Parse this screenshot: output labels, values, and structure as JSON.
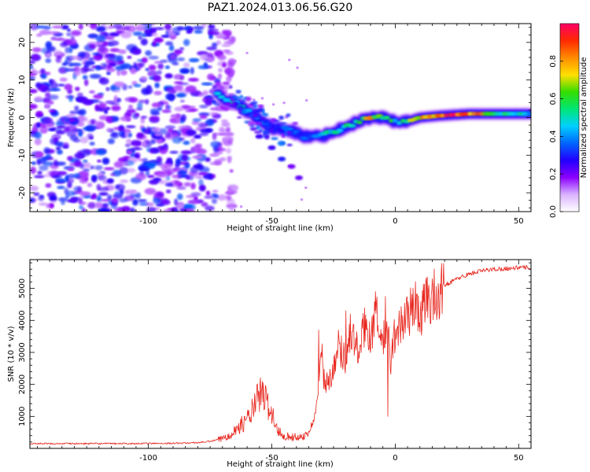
{
  "figure": {
    "title": "PAZ1.2024.013.06.56.G20"
  },
  "chart_data": [
    {
      "type": "heatmap",
      "xlabel": "Height of straight line (km)",
      "ylabel": "Frequency (Hz)",
      "xlim": [
        -148,
        55
      ],
      "ylim": [
        -25,
        25
      ],
      "x_ticks": [
        -100,
        -50,
        0,
        50
      ],
      "y_ticks": [
        -20,
        -10,
        0,
        10,
        20
      ],
      "grid": false,
      "colorbar": {
        "label": "Normalized spectral amplitude",
        "ticks": [
          0.0,
          0.2,
          0.4,
          0.6,
          0.8
        ],
        "range": [
          0,
          1
        ],
        "colormap": [
          "#ffffff",
          "#d9b3ff",
          "#8b00ff",
          "#2200ff",
          "#0066ff",
          "#00d0ff",
          "#00e676",
          "#33dd00",
          "#ffe000",
          "#ff8c00",
          "#ff2a00",
          "#ff0066"
        ]
      },
      "ridge": {
        "x": [
          -72,
          -65,
          -58,
          -50,
          -44,
          -37,
          -30,
          -22,
          -15,
          -10,
          -5,
          0,
          5,
          10,
          18,
          30,
          40,
          55
        ],
        "frequency": [
          6,
          4,
          1,
          -3,
          -3,
          -5,
          -5,
          -3,
          -1,
          0,
          0,
          -1,
          -1,
          0,
          0.5,
          1,
          1,
          1
        ],
        "amplitude": [
          0.45,
          0.55,
          0.45,
          0.3,
          0.4,
          0.35,
          0.5,
          0.55,
          0.65,
          0.8,
          0.6,
          0.55,
          0.6,
          0.8,
          0.9,
          0.95,
          0.6,
          0.45
        ]
      },
      "side_branch": {
        "x": [
          -55,
          -50,
          -46,
          -42,
          -39
        ],
        "frequency": [
          -5,
          -8,
          -11,
          -13,
          -16
        ]
      },
      "noise_region": {
        "x_range": [
          -148,
          -72
        ],
        "frequency_range": [
          -25,
          25
        ],
        "amplitude_range": [
          0.1,
          0.35
        ]
      }
    },
    {
      "type": "line",
      "xlabel": "Height of straight line (km)",
      "ylabel": "SNR (10 * v/v)",
      "xlim": [
        -148,
        55
      ],
      "ylim": [
        0,
        5900
      ],
      "x_ticks": [
        -100,
        -50,
        0,
        50
      ],
      "y_ticks": [
        1000,
        2000,
        3000,
        4000,
        5000
      ],
      "grid": false,
      "series": [
        {
          "color": "#e8261e",
          "x": [
            -148,
            -130,
            -110,
            -90,
            -80,
            -75,
            -70,
            -65,
            -60,
            -57,
            -55,
            -53,
            -50,
            -48,
            -45,
            -42,
            -40,
            -37,
            -35,
            -33,
            -31,
            -30,
            -29,
            -27,
            -25,
            -23,
            -20,
            -18,
            -15,
            -12,
            -10,
            -8,
            -5,
            -3,
            -2,
            0,
            3,
            5,
            8,
            10,
            12,
            15,
            18,
            20,
            25,
            30,
            35,
            40,
            45,
            50,
            55
          ],
          "values": [
            150,
            150,
            150,
            160,
            180,
            220,
            300,
            550,
            900,
            1300,
            1700,
            1600,
            1100,
            600,
            400,
            350,
            350,
            380,
            500,
            900,
            1700,
            3300,
            2200,
            2000,
            2600,
            3200,
            2800,
            3700,
            3000,
            3900,
            3500,
            4200,
            3300,
            3800,
            2600,
            3700,
            3900,
            4200,
            4500,
            4100,
            4600,
            4700,
            4900,
            5100,
            5300,
            5450,
            5550,
            5600,
            5620,
            5650,
            5650
          ],
          "spikes": [
            [
              -31,
              3700
            ],
            [
              -20,
              4300
            ],
            [
              -8,
              4900
            ],
            [
              -4,
              4750
            ],
            [
              -3,
              1000
            ],
            [
              15,
              5300
            ],
            [
              16,
              4200
            ]
          ]
        }
      ]
    }
  ]
}
